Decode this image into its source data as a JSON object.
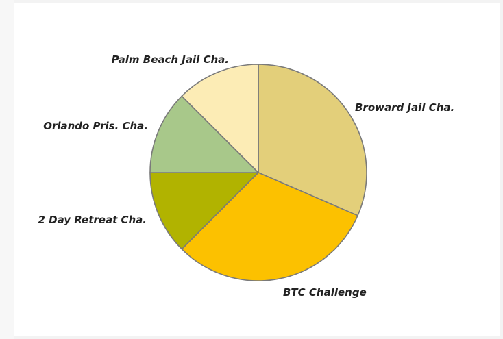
{
  "chart_data": {
    "type": "pie",
    "title": "",
    "categories": [
      "Broward Jail Cha.",
      "BTC Challenge",
      "2 Day Retreat Cha.",
      "Orlando Pris. Cha.",
      "Palm Beach Jail Cha."
    ],
    "values": [
      31.5,
      31,
      12.5,
      12.5,
      12.5
    ],
    "colors": [
      "#e3cf7a",
      "#fcc100",
      "#b1b300",
      "#a8c88a",
      "#fcecb5"
    ],
    "start_angle_deg": 0,
    "direction": "clockwise",
    "legend": "none",
    "slice_stroke_color": "#7a7a7a"
  }
}
